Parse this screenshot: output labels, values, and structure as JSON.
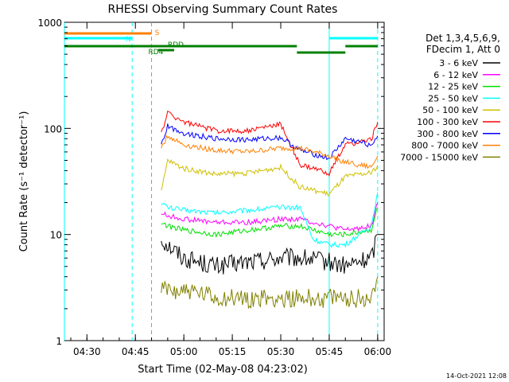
{
  "chart_data": {
    "type": "line",
    "title": "RHESSI Observing Summary Count Rates",
    "xlabel": "Start Time (02-May-08 04:23:02)",
    "ylabel": "Count Rate (s⁻¹ detector⁻¹)",
    "y_scale": "log",
    "ylim": [
      1,
      1000
    ],
    "xlim": [
      "04:23:02",
      "06:02:00"
    ],
    "x_ticks": [
      "04:30",
      "04:45",
      "05:00",
      "05:15",
      "05:30",
      "05:45",
      "06:00"
    ],
    "y_ticks": [
      "1",
      "10",
      "100",
      "1000"
    ],
    "grid": false,
    "legend_position": "right",
    "legend_header": [
      "Det 1,3,4,5,6,9,",
      "FDecim 1, Att 0"
    ],
    "timestamp": "14-Oct-2021 12:08",
    "series": [
      {
        "name": "3 - 6 keV",
        "color": "#000000",
        "x": [
          "04:53",
          "05:00",
          "05:10",
          "05:20",
          "05:30",
          "05:36",
          "05:45",
          "05:50",
          "05:58",
          "06:00"
        ],
        "y": [
          9,
          6,
          5,
          5.5,
          6,
          6,
          5.5,
          5,
          6,
          10
        ]
      },
      {
        "name": "6 - 12 keV",
        "color": "#ff00ff",
        "x": [
          "04:53",
          "04:55",
          "05:00",
          "05:10",
          "05:20",
          "05:30",
          "05:36",
          "05:45",
          "05:50",
          "05:58",
          "06:00"
        ],
        "y": [
          16,
          15,
          14,
          13,
          13,
          14,
          14,
          12,
          11,
          12,
          20
        ]
      },
      {
        "name": "12 - 25 keV",
        "color": "#00e000",
        "x": [
          "04:53",
          "04:55",
          "05:00",
          "05:10",
          "05:20",
          "05:30",
          "05:36",
          "05:45",
          "05:50",
          "05:58",
          "06:00"
        ],
        "y": [
          13,
          12,
          11,
          10,
          11,
          12,
          12,
          10,
          10,
          11,
          18
        ]
      },
      {
        "name": "25 - 50 keV",
        "color": "#00ffff",
        "x": [
          "04:53",
          "04:55",
          "05:00",
          "05:10",
          "05:20",
          "05:30",
          "05:36",
          "05:40",
          "05:45",
          "05:50",
          "05:58",
          "06:00"
        ],
        "y": [
          20,
          18,
          17,
          16,
          17,
          18,
          18,
          9,
          8,
          8,
          12,
          25
        ]
      },
      {
        "name": "50 - 100 keV",
        "color": "#d0c000",
        "x": [
          "04:53",
          "04:55",
          "05:00",
          "05:10",
          "05:20",
          "05:30",
          "05:36",
          "05:45",
          "05:50",
          "05:58",
          "06:00"
        ],
        "y": [
          25,
          50,
          42,
          37,
          38,
          43,
          28,
          24,
          35,
          38,
          45
        ]
      },
      {
        "name": "100 - 300 keV",
        "color": "#ff0000",
        "x": [
          "04:53",
          "04:55",
          "05:00",
          "05:10",
          "05:20",
          "05:30",
          "05:36",
          "05:45",
          "05:50",
          "05:58",
          "06:00"
        ],
        "y": [
          90,
          140,
          115,
          95,
          95,
          110,
          45,
          38,
          70,
          78,
          115
        ]
      },
      {
        "name": "300 - 800 keV",
        "color": "#0000ff",
        "x": [
          "04:53",
          "04:55",
          "05:00",
          "05:10",
          "05:20",
          "05:30",
          "05:36",
          "05:45",
          "05:50",
          "05:58",
          "06:00"
        ],
        "y": [
          70,
          105,
          90,
          80,
          78,
          82,
          62,
          52,
          80,
          70,
          85
        ]
      },
      {
        "name": "800 - 7000 keV",
        "color": "#ff8000",
        "x": [
          "04:53",
          "04:55",
          "05:00",
          "05:10",
          "05:20",
          "05:30",
          "05:36",
          "05:45",
          "05:50",
          "05:58",
          "06:00"
        ],
        "y": [
          65,
          85,
          70,
          62,
          60,
          65,
          65,
          55,
          48,
          43,
          55
        ]
      },
      {
        "name": "7000 - 15000 keV",
        "color": "#808000",
        "x": [
          "04:53",
          "05:00",
          "05:10",
          "05:20",
          "05:30",
          "05:36",
          "05:45",
          "05:50",
          "05:58",
          "06:00"
        ],
        "y": [
          3,
          3,
          2.5,
          2.5,
          2.5,
          2.5,
          2.5,
          2.5,
          2.5,
          4
        ]
      }
    ],
    "flag_bars": [
      {
        "label": "S",
        "color": "#ff8000",
        "segments": [
          [
            "04:23:02",
            "04:50"
          ]
        ]
      },
      {
        "label": "N",
        "color": "#00ffff",
        "segments": [
          [
            "04:23:02",
            "04:44"
          ],
          [
            "05:45",
            "06:00"
          ]
        ]
      },
      {
        "label": "RD4",
        "color": "#008000",
        "segments": [
          [
            "04:52",
            "04:57"
          ]
        ]
      },
      {
        "label": "RDD",
        "color": "#008000",
        "segments": [
          [
            "04:23:02",
            "04:50"
          ],
          [
            "04:50",
            "05:35"
          ],
          [
            "05:35",
            "05:50"
          ],
          [
            "05:50",
            "06:00"
          ]
        ]
      }
    ],
    "vertical_markers": [
      {
        "time": "04:23:02",
        "color": "#00ffff",
        "style": "solid"
      },
      {
        "time": "04:44",
        "color": "#00ffff",
        "style": "dashed"
      },
      {
        "time": "04:50",
        "color": "#ff8000",
        "style": "dashed"
      },
      {
        "time": "05:45",
        "color": "#00ffff",
        "style": "solid"
      },
      {
        "time": "06:00",
        "color": "#00ffff",
        "style": "dashed"
      }
    ]
  }
}
